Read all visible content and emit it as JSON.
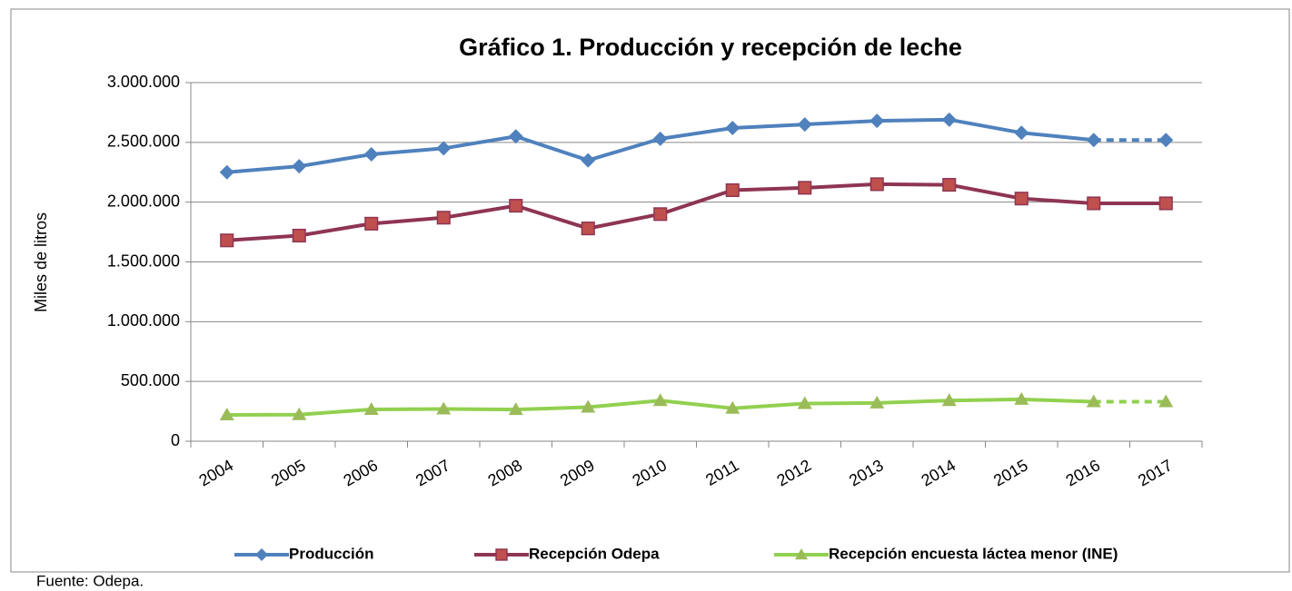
{
  "chart_data": {
    "type": "line",
    "title": "Gráfico 1. Producción y recepción de leche",
    "y_label": "Miles de litros",
    "source": "Fuente: Odepa.",
    "categories": [
      "2004",
      "2005",
      "2006",
      "2007",
      "2008",
      "2009",
      "2010",
      "2011",
      "2012",
      "2013",
      "2014",
      "2015",
      "2016",
      "2017"
    ],
    "series": [
      {
        "name": "Producción",
        "color": "#4f81bd",
        "marker_color": "#4f81bd",
        "marker": "diamond",
        "dashed_last_segment": true,
        "values": [
          2250000,
          2300000,
          2400000,
          2450000,
          2550000,
          2350000,
          2530000,
          2620000,
          2650000,
          2680000,
          2690000,
          2580000,
          2520000,
          2520000
        ]
      },
      {
        "name": "Recepción Odepa",
        "color": "#8e3552",
        "marker_color": "#c0504d",
        "marker": "square",
        "dashed_last_segment": false,
        "values": [
          1680000,
          1720000,
          1820000,
          1870000,
          1970000,
          1780000,
          1900000,
          2100000,
          2120000,
          2150000,
          2145000,
          2030000,
          1990000,
          1990000
        ]
      },
      {
        "name": "Recepción encuesta láctea menor (INE)",
        "color": "#92d050",
        "marker_color": "#9bbb59",
        "marker": "triangle",
        "dashed_last_segment": true,
        "values": [
          220000,
          222000,
          266000,
          270000,
          265000,
          285000,
          340000,
          275000,
          315000,
          320000,
          340000,
          350000,
          330000,
          330000
        ]
      }
    ],
    "ylim": [
      0,
      3000000
    ],
    "yticks": [
      0,
      {
        "value": 500000,
        "label": "500.000"
      },
      {
        "value": 1000000,
        "label": "1.000.000"
      },
      {
        "value": 1500000,
        "label": "1.500.000"
      },
      {
        "value": 2000000,
        "label": "2.000.000"
      },
      {
        "value": 2500000,
        "label": "2.500.000"
      },
      {
        "value": 3000000,
        "label": "3.000.000"
      }
    ],
    "grid": true,
    "legend": "bottom"
  }
}
